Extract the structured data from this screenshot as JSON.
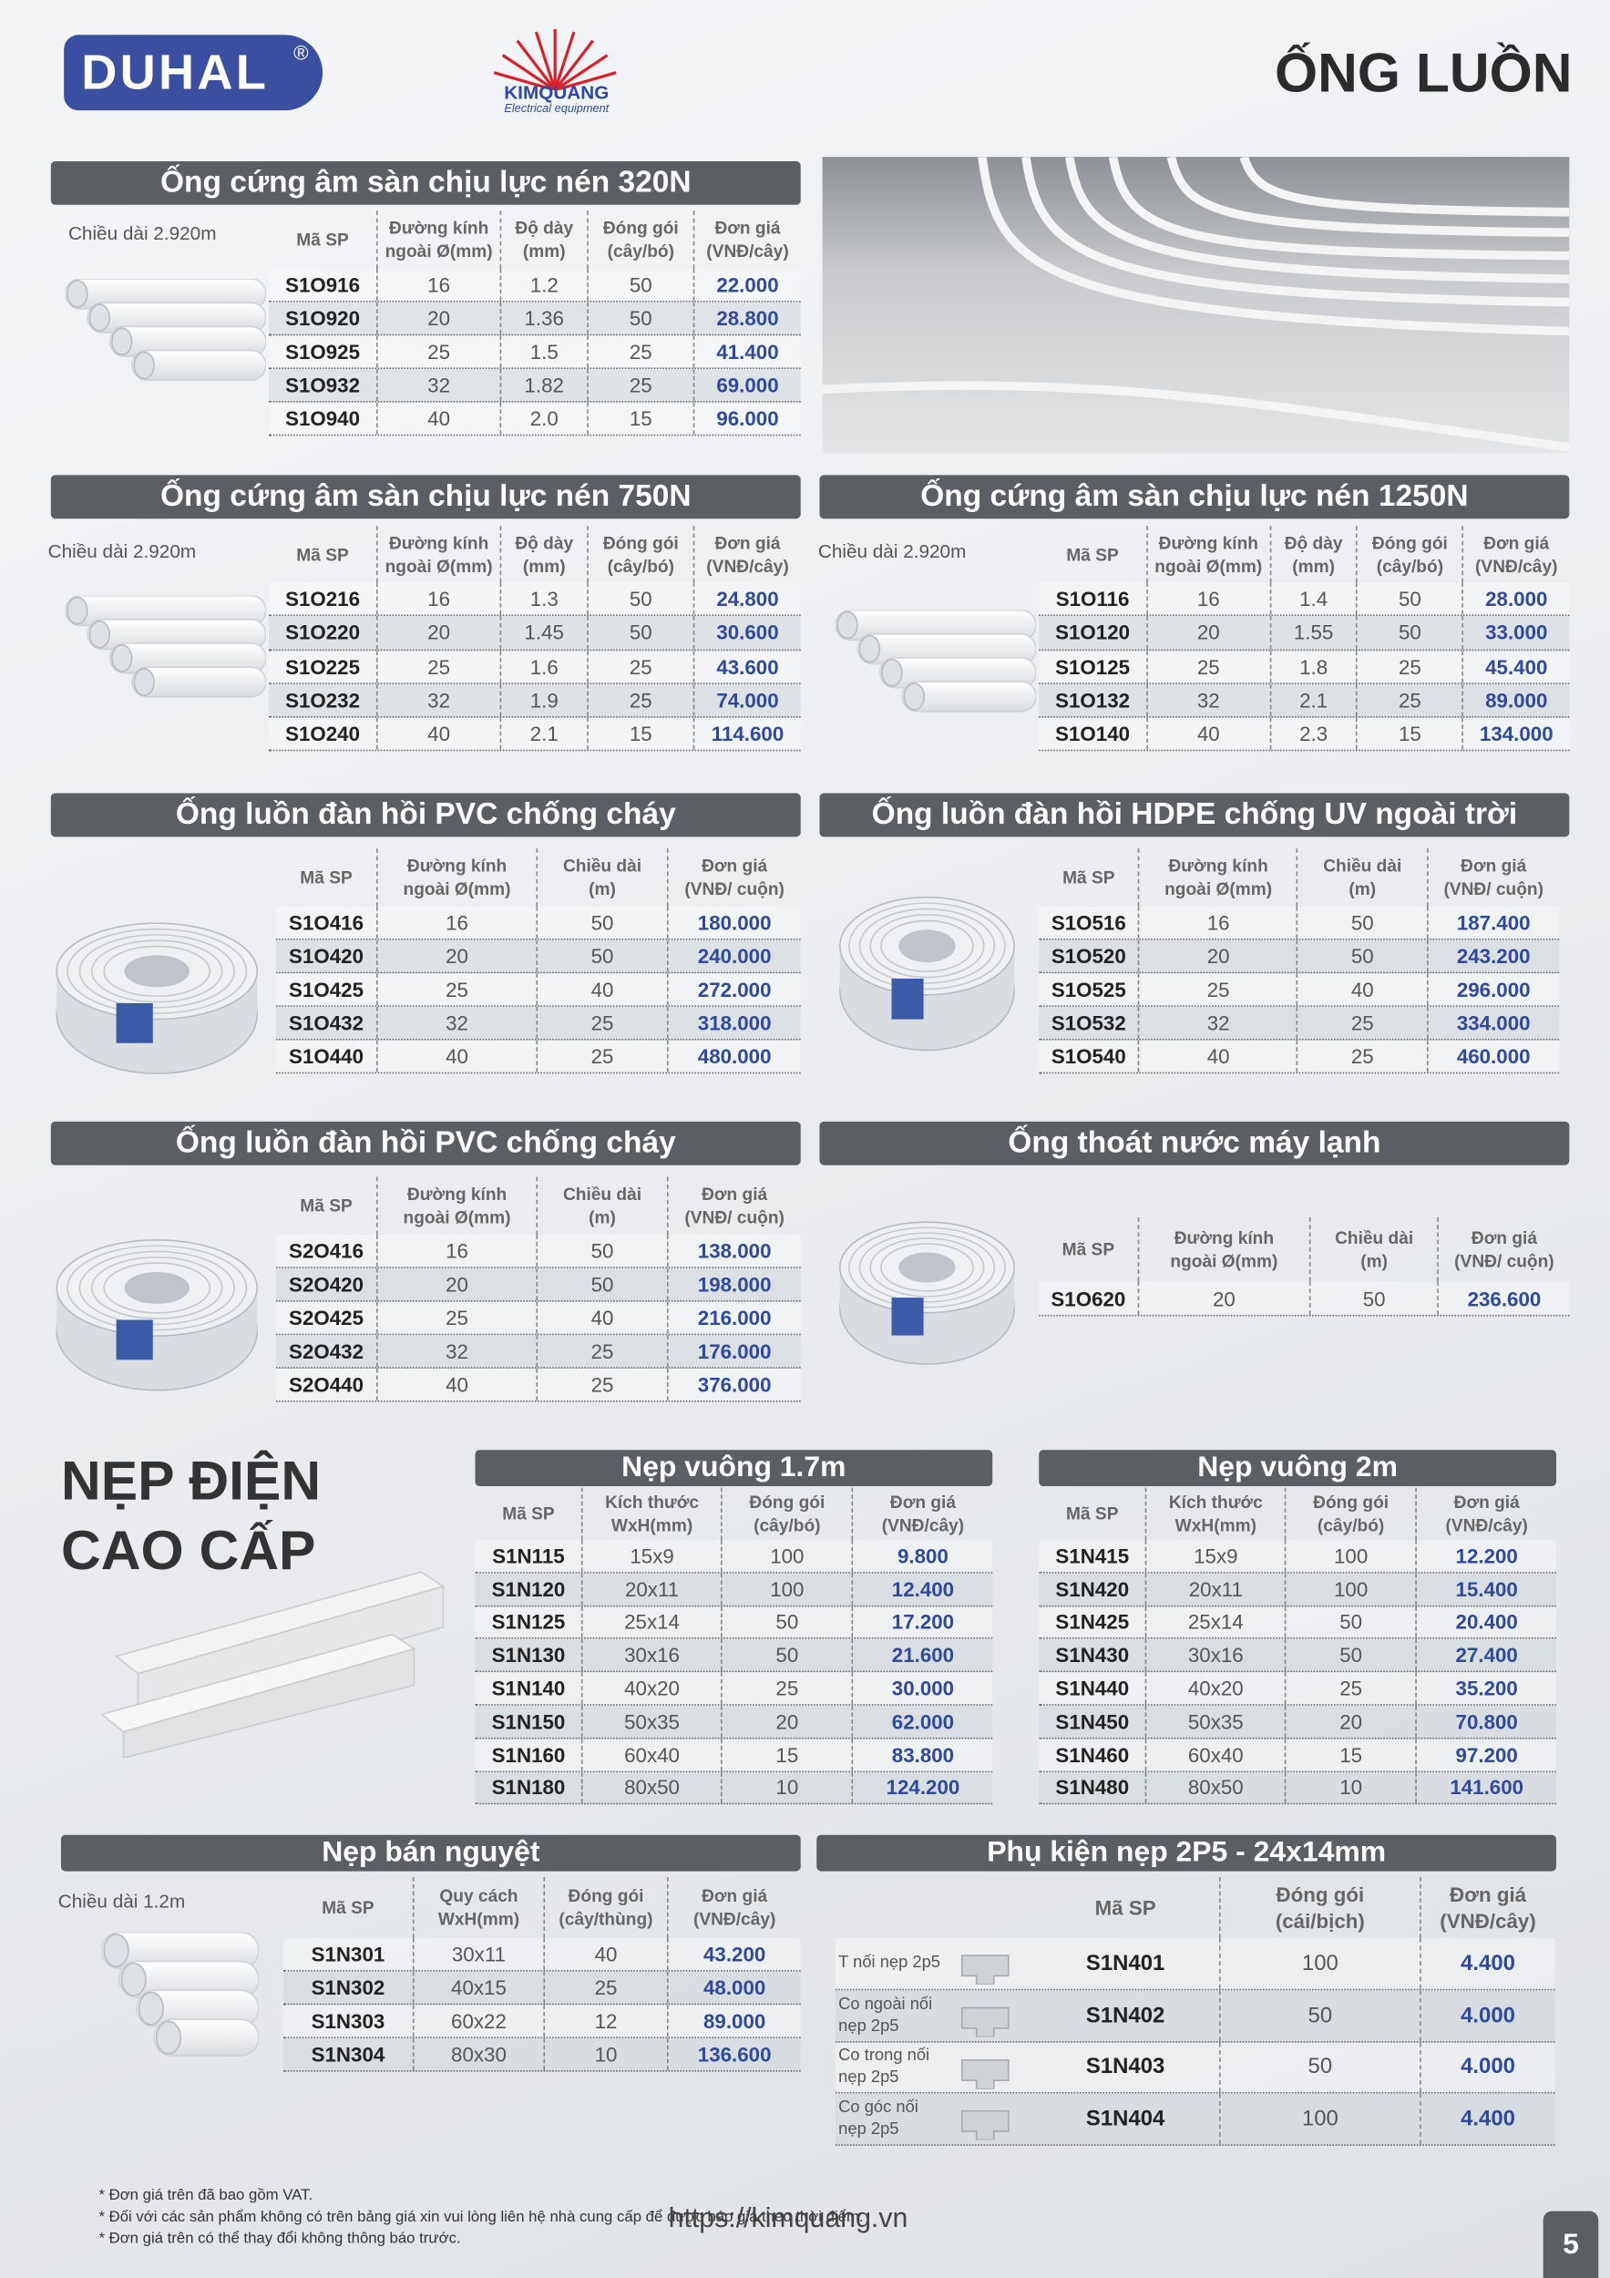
{
  "header": {
    "brand": "DUHAL",
    "brand_mark": "®",
    "partner": "KIMQUANG",
    "partner_sub": "Electrical equipment",
    "title": "ỐNG LUỒN"
  },
  "sections": [
    {
      "title": "Ống cứng âm sàn chịu lực nén 320N",
      "note": "Chiều dài 2.920m",
      "columns": [
        [
          "Mã SP"
        ],
        [
          "Đường kính",
          "ngoài Ø(mm)"
        ],
        [
          "Độ dày",
          "(mm)"
        ],
        [
          "Đóng gói",
          "(cây/bó)"
        ],
        [
          "Đơn giá",
          "(VNĐ/cây)"
        ]
      ],
      "rows": [
        [
          "S1O916",
          "16",
          "1.2",
          "50",
          "22.000"
        ],
        [
          "S1O920",
          "20",
          "1.36",
          "50",
          "28.800"
        ],
        [
          "S1O925",
          "25",
          "1.5",
          "25",
          "41.400"
        ],
        [
          "S1O932",
          "32",
          "1.82",
          "25",
          "69.000"
        ],
        [
          "S1O940",
          "40",
          "2.0",
          "15",
          "96.000"
        ]
      ]
    },
    {
      "title": "Ống cứng âm sàn chịu lực nén 750N",
      "note": "Chiều dài 2.920m",
      "columns": [
        [
          "Mã SP"
        ],
        [
          "Đường kính",
          "ngoài Ø(mm)"
        ],
        [
          "Độ dày",
          "(mm)"
        ],
        [
          "Đóng gói",
          "(cây/bó)"
        ],
        [
          "Đơn giá",
          "(VNĐ/cây)"
        ]
      ],
      "rows": [
        [
          "S1O216",
          "16",
          "1.3",
          "50",
          "24.800"
        ],
        [
          "S1O220",
          "20",
          "1.45",
          "50",
          "30.600"
        ],
        [
          "S1O225",
          "25",
          "1.6",
          "25",
          "43.600"
        ],
        [
          "S1O232",
          "32",
          "1.9",
          "25",
          "74.000"
        ],
        [
          "S1O240",
          "40",
          "2.1",
          "15",
          "114.600"
        ]
      ]
    },
    {
      "title": "Ống cứng âm sàn chịu lực nén 1250N",
      "note": "Chiều dài 2.920m",
      "columns": [
        [
          "Mã SP"
        ],
        [
          "Đường kính",
          "ngoài Ø(mm)"
        ],
        [
          "Độ dày",
          "(mm)"
        ],
        [
          "Đóng gói",
          "(cây/bó)"
        ],
        [
          "Đơn giá",
          "(VNĐ/cây)"
        ]
      ],
      "rows": [
        [
          "S1O116",
          "16",
          "1.4",
          "50",
          "28.000"
        ],
        [
          "S1O120",
          "20",
          "1.55",
          "50",
          "33.000"
        ],
        [
          "S1O125",
          "25",
          "1.8",
          "25",
          "45.400"
        ],
        [
          "S1O132",
          "32",
          "2.1",
          "25",
          "89.000"
        ],
        [
          "S1O140",
          "40",
          "2.3",
          "15",
          "134.000"
        ]
      ]
    },
    {
      "title": "Ống luồn đàn hồi PVC chống cháy",
      "columns": [
        [
          "Mã SP"
        ],
        [
          "Đường kính",
          "ngoài Ø(mm)"
        ],
        [
          "Chiều dài",
          "(m)"
        ],
        [
          "Đơn giá",
          "(VNĐ/ cuộn)"
        ]
      ],
      "rows": [
        [
          "S1O416",
          "16",
          "50",
          "180.000"
        ],
        [
          "S1O420",
          "20",
          "50",
          "240.000"
        ],
        [
          "S1O425",
          "25",
          "40",
          "272.000"
        ],
        [
          "S1O432",
          "32",
          "25",
          "318.000"
        ],
        [
          "S1O440",
          "40",
          "25",
          "480.000"
        ]
      ]
    },
    {
      "title": "Ống luồn đàn hồi HDPE chống UV ngoài trời",
      "columns": [
        [
          "Mã SP"
        ],
        [
          "Đường kính",
          "ngoài Ø(mm)"
        ],
        [
          "Chiều dài",
          "(m)"
        ],
        [
          "Đơn giá",
          "(VNĐ/ cuộn)"
        ]
      ],
      "rows": [
        [
          "S1O516",
          "16",
          "50",
          "187.400"
        ],
        [
          "S1O520",
          "20",
          "50",
          "243.200"
        ],
        [
          "S1O525",
          "25",
          "40",
          "296.000"
        ],
        [
          "S1O532",
          "32",
          "25",
          "334.000"
        ],
        [
          "S1O540",
          "40",
          "25",
          "460.000"
        ]
      ]
    },
    {
      "title": "Ống luồn đàn hồi PVC chống cháy",
      "columns": [
        [
          "Mã SP"
        ],
        [
          "Đường kính",
          "ngoài Ø(mm)"
        ],
        [
          "Chiều dài",
          "(m)"
        ],
        [
          "Đơn giá",
          "(VNĐ/ cuộn)"
        ]
      ],
      "rows": [
        [
          "S2O416",
          "16",
          "50",
          "138.000"
        ],
        [
          "S2O420",
          "20",
          "50",
          "198.000"
        ],
        [
          "S2O425",
          "25",
          "40",
          "216.000"
        ],
        [
          "S2O432",
          "32",
          "25",
          "176.000"
        ],
        [
          "S2O440",
          "40",
          "25",
          "376.000"
        ]
      ]
    },
    {
      "title": "Ống thoát nước máy lạnh",
      "columns": [
        [
          "Mã SP"
        ],
        [
          "Đường kính",
          "ngoài Ø(mm)"
        ],
        [
          "Chiều dài",
          "(m)"
        ],
        [
          "Đơn giá",
          "(VNĐ/ cuộn)"
        ]
      ],
      "rows": [
        [
          "S1O620",
          "20",
          "50",
          "236.600"
        ]
      ]
    },
    {
      "title": "Nẹp vuông 1.7m",
      "columns": [
        [
          "Mã SP"
        ],
        [
          "Kích thước",
          "WxH(mm)"
        ],
        [
          "Đóng gói",
          "(cây/bó)"
        ],
        [
          "Đơn giá",
          "(VNĐ/cây)"
        ]
      ],
      "rows": [
        [
          "S1N115",
          "15x9",
          "100",
          "9.800"
        ],
        [
          "S1N120",
          "20x11",
          "100",
          "12.400"
        ],
        [
          "S1N125",
          "25x14",
          "50",
          "17.200"
        ],
        [
          "S1N130",
          "30x16",
          "50",
          "21.600"
        ],
        [
          "S1N140",
          "40x20",
          "25",
          "30.000"
        ],
        [
          "S1N150",
          "50x35",
          "20",
          "62.000"
        ],
        [
          "S1N160",
          "60x40",
          "15",
          "83.800"
        ],
        [
          "S1N180",
          "80x50",
          "10",
          "124.200"
        ]
      ]
    },
    {
      "title": "Nẹp vuông 2m",
      "columns": [
        [
          "Mã SP"
        ],
        [
          "Kích thước",
          "WxH(mm)"
        ],
        [
          "Đóng gói",
          "(cây/bó)"
        ],
        [
          "Đơn giá",
          "(VNĐ/cây)"
        ]
      ],
      "rows": [
        [
          "S1N415",
          "15x9",
          "100",
          "12.200"
        ],
        [
          "S1N420",
          "20x11",
          "100",
          "15.400"
        ],
        [
          "S1N425",
          "25x14",
          "50",
          "20.400"
        ],
        [
          "S1N430",
          "30x16",
          "50",
          "27.400"
        ],
        [
          "S1N440",
          "40x20",
          "25",
          "35.200"
        ],
        [
          "S1N450",
          "50x35",
          "20",
          "70.800"
        ],
        [
          "S1N460",
          "60x40",
          "15",
          "97.200"
        ],
        [
          "S1N480",
          "80x50",
          "10",
          "141.600"
        ]
      ]
    },
    {
      "title": "Nẹp bán nguyệt",
      "note": "Chiều dài 1.2m",
      "columns": [
        [
          "Mã SP"
        ],
        [
          "Quy cách",
          "WxH(mm)"
        ],
        [
          "Đóng gói",
          "(cây/thùng)"
        ],
        [
          "Đơn giá",
          "(VNĐ/cây)"
        ]
      ],
      "rows": [
        [
          "S1N301",
          "30x11",
          "40",
          "43.200"
        ],
        [
          "S1N302",
          "40x15",
          "25",
          "48.000"
        ],
        [
          "S1N303",
          "60x22",
          "12",
          "89.000"
        ],
        [
          "S1N304",
          "80x30",
          "10",
          "136.600"
        ]
      ]
    },
    {
      "title": "Phụ kiện nẹp 2P5 - 24x14mm",
      "labels": [
        "T nối nẹp 2p5",
        "Co ngoài nối nẹp 2p5",
        "Co trong nối nẹp 2p5",
        "Co góc nối nẹp 2p5"
      ],
      "columns": [
        [
          "Mã SP"
        ],
        [
          "Đóng gói",
          "(cái/bịch)"
        ],
        [
          "Đơn giá",
          "(VNĐ/cây)"
        ]
      ],
      "rows": [
        [
          "S1N401",
          "100",
          "4.400"
        ],
        [
          "S1N402",
          "50",
          "4.000"
        ],
        [
          "S1N403",
          "50",
          "4.000"
        ],
        [
          "S1N404",
          "100",
          "4.400"
        ]
      ]
    }
  ],
  "heading2": [
    "NẸP ĐIỆN",
    "CAO CẤP"
  ],
  "footer": {
    "notes": [
      "* Đơn giá trên đã bao gồm VAT.",
      "* Đối với các sản phẩm không có trên bảng giá xin vui lòng liên hệ nhà cung cấp để được báo giá theo thời điểm.",
      "* Đơn giá trên có thể thay đổi không thông báo trước."
    ],
    "url": "https://kimquang.vn",
    "page": "5"
  }
}
